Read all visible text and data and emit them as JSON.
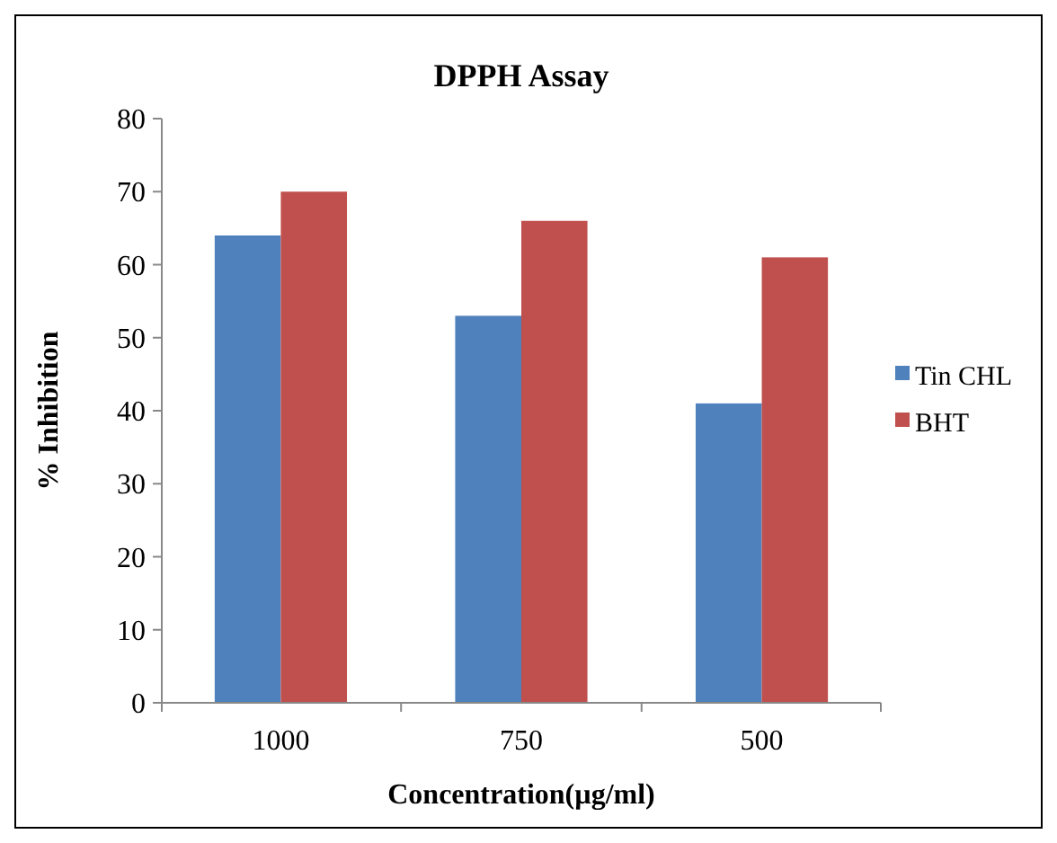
{
  "chart_data": {
    "type": "bar",
    "title": "DPPH Assay",
    "xlabel": "Concentration(µg/ml)",
    "ylabel": "% Inhibition",
    "categories": [
      "1000",
      "750",
      "500"
    ],
    "series": [
      {
        "name": "Tin CHL",
        "color": "#4f81bd",
        "values": [
          64,
          53,
          41
        ]
      },
      {
        "name": "BHT",
        "color": "#c0504d",
        "values": [
          70,
          66,
          61
        ]
      }
    ],
    "ylim": [
      0,
      80
    ],
    "yticks": [
      0,
      10,
      20,
      30,
      40,
      50,
      60,
      70,
      80
    ],
    "grid": false,
    "legend": "right"
  }
}
